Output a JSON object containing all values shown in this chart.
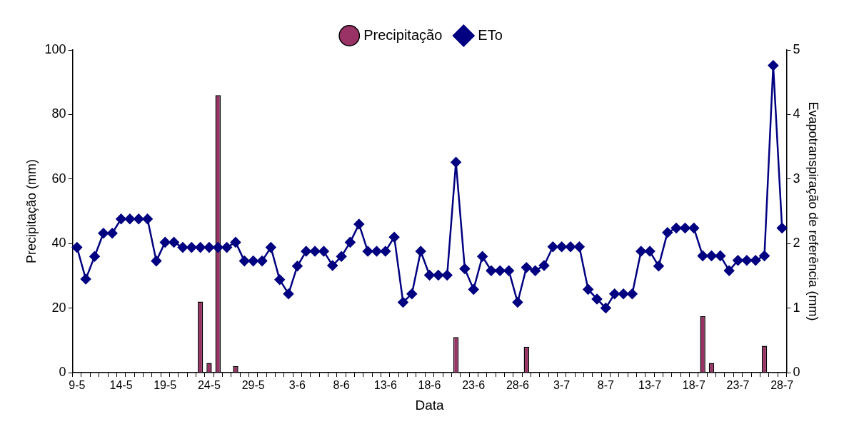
{
  "chart_data": {
    "type": "bar",
    "xlabel": "Data",
    "ylabel": "Precipitação (mm)",
    "y2label": "Evapotranspiração de referência (mm)",
    "categories": [
      "9-5",
      null,
      null,
      null,
      null,
      "14-5",
      null,
      null,
      null,
      null,
      "19-5",
      null,
      null,
      null,
      null,
      "24-5",
      null,
      null,
      null,
      null,
      "29-5",
      null,
      null,
      null,
      null,
      "3-6",
      null,
      null,
      null,
      null,
      "8-6",
      null,
      null,
      null,
      null,
      "13-6",
      null,
      null,
      null,
      null,
      "18-6",
      null,
      null,
      null,
      null,
      "23-6",
      null,
      null,
      null,
      null,
      "28-6",
      null,
      null,
      null,
      null,
      "3-7",
      null,
      null,
      null,
      null,
      "8-7",
      null,
      null,
      null,
      null,
      "13-7",
      null,
      null,
      null,
      null,
      "18-7",
      null,
      null,
      null,
      null,
      "23-7",
      null,
      null,
      null,
      null,
      "28-7"
    ],
    "series": [
      {
        "name": "Precipitação",
        "color": "#993366",
        "values": [
          null,
          null,
          null,
          null,
          null,
          null,
          null,
          null,
          null,
          null,
          null,
          null,
          null,
          null,
          22,
          3,
          86,
          null,
          2,
          null,
          null,
          null,
          null,
          null,
          null,
          null,
          null,
          null,
          null,
          null,
          null,
          null,
          null,
          null,
          null,
          null,
          null,
          null,
          null,
          null,
          null,
          null,
          null,
          11,
          null,
          null,
          null,
          null,
          null,
          null,
          null,
          8,
          null,
          null,
          null,
          null,
          null,
          null,
          null,
          null,
          null,
          null,
          null,
          null,
          null,
          null,
          null,
          null,
          null,
          null,
          null,
          17.5,
          3,
          null,
          null,
          null,
          null,
          null,
          8.3,
          null,
          null
        ]
      },
      {
        "name": "ETo",
        "type": "line",
        "axis": "y2",
        "color": "#000080",
        "marker": "diamond",
        "values": [
          1.94,
          1.45,
          1.8,
          2.16,
          2.16,
          2.38,
          2.38,
          2.38,
          2.38,
          1.73,
          2.02,
          2.02,
          1.94,
          1.94,
          1.94,
          1.94,
          1.94,
          1.94,
          2.02,
          1.73,
          1.73,
          1.73,
          1.94,
          1.44,
          1.22,
          1.65,
          1.88,
          1.88,
          1.88,
          1.66,
          1.8,
          2.02,
          2.3,
          1.88,
          1.88,
          1.88,
          2.1,
          1.09,
          1.22,
          1.88,
          1.51,
          1.51,
          1.51,
          3.26,
          1.61,
          1.29,
          1.8,
          1.58,
          1.58,
          1.58,
          1.09,
          1.63,
          1.58,
          1.66,
          1.95,
          1.95,
          1.95,
          1.95,
          1.29,
          1.14,
          1,
          1.22,
          1.22,
          1.22,
          1.88,
          1.88,
          1.65,
          2.17,
          2.24,
          2.24,
          2.24,
          1.81,
          1.81,
          1.81,
          1.58,
          1.74,
          1.74,
          1.74,
          1.81,
          4.76,
          2.24
        ]
      }
    ],
    "ylim": [
      0,
      100
    ],
    "yticks": [
      0,
      20,
      40,
      60,
      80,
      100
    ],
    "y2lim": [
      0,
      5
    ],
    "y2ticks": [
      0,
      1,
      2,
      3,
      4,
      5
    ],
    "legend": "top",
    "grid": false,
    "line_style": "solid"
  }
}
